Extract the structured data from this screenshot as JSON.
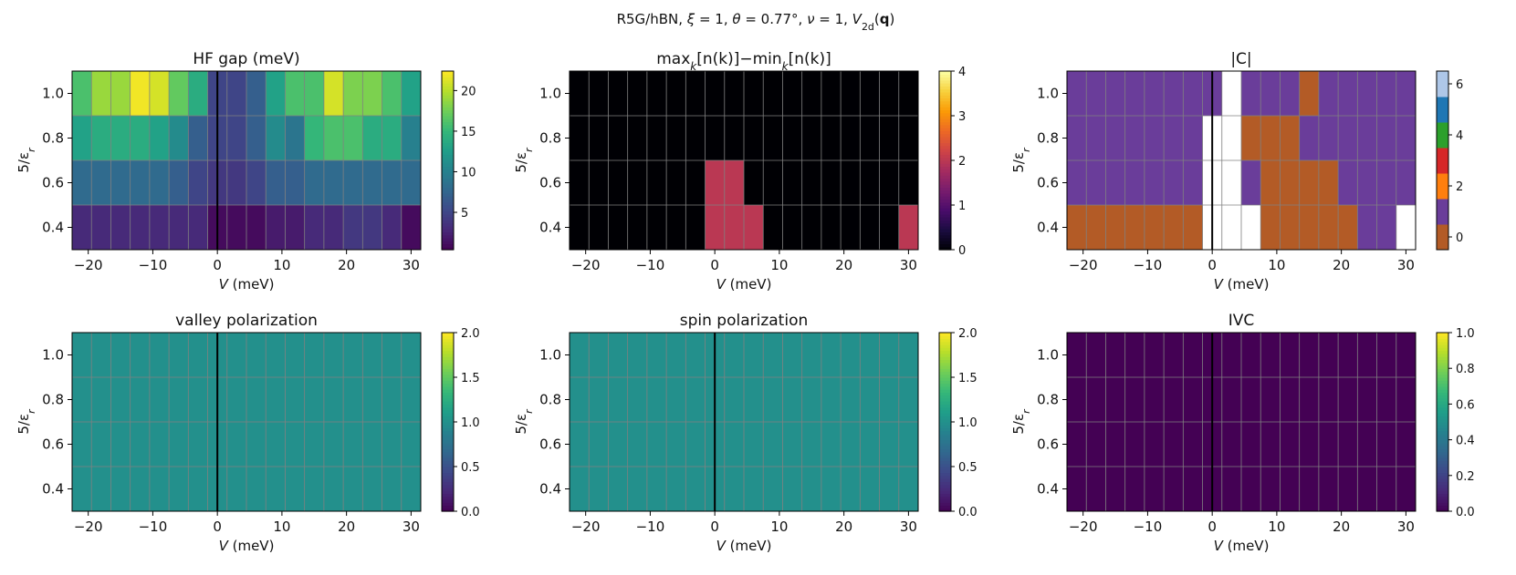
{
  "suptitle": "R5G/hBN,  ξ = 1,  θ = 0.77°,  ν = 1,  V₂d(q)",
  "suptitle_parts": {
    "prefix": "R5G/hBN,  ",
    "xi": "ξ",
    "eq1": " = 1,  ",
    "theta": "θ",
    "eq2": " = 0.77°,  ",
    "nu": "ν",
    "eq3": " = 1,  ",
    "V": "V",
    "sub": "2d",
    "open": "(",
    "q": "q",
    "close": ")"
  },
  "colors": {
    "viridis": [
      "#440154",
      "#482878",
      "#3e4989",
      "#31688e",
      "#26828e",
      "#1f9e89",
      "#35b779",
      "#6ece58",
      "#b5de2b",
      "#fde725"
    ],
    "inferno": [
      "#000004",
      "#1b0c41",
      "#4a0c6b",
      "#781c6d",
      "#a52c60",
      "#cf4446",
      "#ed6925",
      "#fb9b06",
      "#f7d13d",
      "#fcffa4"
    ],
    "grid": "#808080",
    "zero_line": "#000000",
    "chern_levels": [
      "#b35b26",
      "#6a3d9a",
      "#ff7f0e",
      "#d62728",
      "#2ca02c",
      "#1f77b4",
      "#aec7e8"
    ]
  },
  "chart_data": [
    {
      "type": "heatmap",
      "title": "HF gap (meV)",
      "xlabel": "V (meV)",
      "ylabel": "5/εr",
      "x": [
        -21,
        -18,
        -15,
        -12,
        -9,
        -6,
        -3,
        0,
        3,
        6,
        9,
        12,
        15,
        18,
        21,
        24,
        27,
        30
      ],
      "y": [
        0.4,
        0.6,
        0.8,
        1.0
      ],
      "z": [
        [
          3,
          3,
          3,
          3,
          3,
          3,
          3,
          1,
          1,
          1,
          2,
          2,
          3,
          3,
          4,
          4,
          3,
          1
        ],
        [
          8,
          8,
          8,
          8,
          8,
          7,
          5,
          4,
          4,
          5,
          7,
          7,
          8,
          8,
          8,
          8,
          8,
          8
        ],
        [
          13,
          14,
          14,
          14,
          13,
          11,
          7,
          5,
          5,
          7,
          11,
          9,
          15,
          16,
          16,
          14,
          14,
          10
        ],
        [
          16,
          19,
          19,
          22,
          21,
          17,
          14,
          5,
          5,
          7,
          13,
          16,
          16,
          21,
          18,
          18,
          16,
          13
        ]
      ],
      "colormap": "viridis",
      "xlim": [
        -22.5,
        31.5
      ],
      "ylim": [
        0.3,
        1.1
      ],
      "clim": [
        0.4,
        22.4
      ],
      "xticks": [
        -20,
        -10,
        0,
        10,
        20,
        30
      ],
      "yticks": [
        0.4,
        0.6,
        0.8,
        1.0
      ],
      "xtick_labels": [
        "−20",
        "−10",
        "0",
        "10",
        "20",
        "30"
      ],
      "ytick_labels": [
        "0.4",
        "0.6",
        "0.8",
        "1.0"
      ],
      "cticks": [
        5,
        10,
        15,
        20
      ],
      "ctick_labels": [
        "5",
        "10",
        "15",
        "20"
      ],
      "grid": true
    },
    {
      "type": "heatmap",
      "title": "maxk[n(k)]−mink[n(k)]",
      "title_parts": {
        "max": "max",
        "k1": "k",
        "n1": "[n(k)]−min",
        "k2": "k",
        "n2": "[n(k)]"
      },
      "xlabel": "V (meV)",
      "ylabel": "5/εr",
      "x": [
        -21,
        -18,
        -15,
        -12,
        -9,
        -6,
        -3,
        0,
        3,
        6,
        9,
        12,
        15,
        18,
        21,
        24,
        27,
        30
      ],
      "y": [
        0.4,
        0.6,
        0.8,
        1.0
      ],
      "z": [
        [
          0,
          0,
          0,
          0,
          0,
          0,
          0,
          2,
          2,
          2,
          0,
          0,
          0,
          0,
          0,
          0,
          0,
          2
        ],
        [
          0,
          0,
          0,
          0,
          0,
          0,
          0,
          2,
          2,
          0,
          0,
          0,
          0,
          0,
          0,
          0,
          0,
          0
        ],
        [
          0,
          0,
          0,
          0,
          0,
          0,
          0,
          0,
          0,
          0,
          0,
          0,
          0,
          0,
          0,
          0,
          0,
          0
        ],
        [
          0,
          0,
          0,
          0,
          0,
          0,
          0,
          0,
          0,
          0,
          0,
          0,
          0,
          0,
          0,
          0,
          0,
          0
        ]
      ],
      "colormap": "inferno",
      "xlim": [
        -22.5,
        31.5
      ],
      "ylim": [
        0.3,
        1.1
      ],
      "clim": [
        0,
        4
      ],
      "xticks": [
        -20,
        -10,
        0,
        10,
        20,
        30
      ],
      "yticks": [
        0.4,
        0.6,
        0.8,
        1.0
      ],
      "xtick_labels": [
        "−20",
        "−10",
        "0",
        "10",
        "20",
        "30"
      ],
      "ytick_labels": [
        "0.4",
        "0.6",
        "0.8",
        "1.0"
      ],
      "cticks": [
        0,
        1,
        2,
        3,
        4
      ],
      "ctick_labels": [
        "0",
        "1",
        "2",
        "3",
        "4"
      ],
      "grid": true,
      "zero_line": false
    },
    {
      "type": "heatmap",
      "title": "|C|",
      "xlabel": "V (meV)",
      "ylabel": "5/εr",
      "x": [
        -21,
        -18,
        -15,
        -12,
        -9,
        -6,
        -3,
        0,
        3,
        6,
        9,
        12,
        15,
        18,
        21,
        24,
        27,
        30
      ],
      "y": [
        0.4,
        0.6,
        0.8,
        1.0
      ],
      "z": [
        [
          0,
          0,
          0,
          0,
          0,
          0,
          0,
          null,
          null,
          null,
          0,
          0,
          0,
          0,
          0,
          1,
          1,
          null
        ],
        [
          1,
          1,
          1,
          1,
          1,
          1,
          1,
          null,
          null,
          1,
          0,
          0,
          0,
          0,
          1,
          1,
          1,
          1
        ],
        [
          1,
          1,
          1,
          1,
          1,
          1,
          1,
          null,
          null,
          0,
          0,
          0,
          1,
          1,
          1,
          1,
          1,
          1
        ],
        [
          1,
          1,
          1,
          1,
          1,
          1,
          1,
          1,
          null,
          1,
          1,
          1,
          0,
          1,
          1,
          1,
          1,
          1
        ]
      ],
      "missing_color": "#ffffff",
      "colormap": "chern_levels",
      "xlim": [
        -22.5,
        31.5
      ],
      "ylim": [
        0.3,
        1.1
      ],
      "clim": [
        -0.5,
        6.5
      ],
      "xticks": [
        -20,
        -10,
        0,
        10,
        20,
        30
      ],
      "yticks": [
        0.4,
        0.6,
        0.8,
        1.0
      ],
      "xtick_labels": [
        "−20",
        "−10",
        "0",
        "10",
        "20",
        "30"
      ],
      "ytick_labels": [
        "0.4",
        "0.6",
        "0.8",
        "1.0"
      ],
      "cticks": [
        0,
        2,
        4,
        6
      ],
      "ctick_labels": [
        "0",
        "2",
        "4",
        "6"
      ],
      "grid": true
    },
    {
      "type": "heatmap",
      "title": "valley polarization",
      "xlabel": "V (meV)",
      "ylabel": "5/εr",
      "x": [
        -21,
        -18,
        -15,
        -12,
        -9,
        -6,
        -3,
        0,
        3,
        6,
        9,
        12,
        15,
        18,
        21,
        24,
        27,
        30
      ],
      "y": [
        0.4,
        0.6,
        0.8,
        1.0
      ],
      "z": [
        [
          1,
          1,
          1,
          1,
          1,
          1,
          1,
          1,
          1,
          1,
          1,
          1,
          1,
          1,
          1,
          1,
          1,
          1
        ],
        [
          1,
          1,
          1,
          1,
          1,
          1,
          1,
          1,
          1,
          1,
          1,
          1,
          1,
          1,
          1,
          1,
          1,
          1
        ],
        [
          1,
          1,
          1,
          1,
          1,
          1,
          1,
          1,
          1,
          1,
          1,
          1,
          1,
          1,
          1,
          1,
          1,
          1
        ],
        [
          1,
          1,
          1,
          1,
          1,
          1,
          1,
          1,
          1,
          1,
          1,
          1,
          1,
          1,
          1,
          1,
          1,
          1
        ]
      ],
      "colormap": "viridis",
      "xlim": [
        -22.5,
        31.5
      ],
      "ylim": [
        0.3,
        1.1
      ],
      "clim": [
        0,
        2
      ],
      "xticks": [
        -20,
        -10,
        0,
        10,
        20,
        30
      ],
      "yticks": [
        0.4,
        0.6,
        0.8,
        1.0
      ],
      "xtick_labels": [
        "−20",
        "−10",
        "0",
        "10",
        "20",
        "30"
      ],
      "ytick_labels": [
        "0.4",
        "0.6",
        "0.8",
        "1.0"
      ],
      "cticks": [
        0,
        0.5,
        1,
        1.5,
        2
      ],
      "ctick_labels": [
        "0.0",
        "0.5",
        "1.0",
        "1.5",
        "2.0"
      ],
      "grid": true
    },
    {
      "type": "heatmap",
      "title": "spin polarization",
      "xlabel": "V (meV)",
      "ylabel": "5/εr",
      "x": [
        -21,
        -18,
        -15,
        -12,
        -9,
        -6,
        -3,
        0,
        3,
        6,
        9,
        12,
        15,
        18,
        21,
        24,
        27,
        30
      ],
      "y": [
        0.4,
        0.6,
        0.8,
        1.0
      ],
      "z": [
        [
          1,
          1,
          1,
          1,
          1,
          1,
          1,
          1,
          1,
          1,
          1,
          1,
          1,
          1,
          1,
          1,
          1,
          1
        ],
        [
          1,
          1,
          1,
          1,
          1,
          1,
          1,
          1,
          1,
          1,
          1,
          1,
          1,
          1,
          1,
          1,
          1,
          1
        ],
        [
          1,
          1,
          1,
          1,
          1,
          1,
          1,
          1,
          1,
          1,
          1,
          1,
          1,
          1,
          1,
          1,
          1,
          1
        ],
        [
          1,
          1,
          1,
          1,
          1,
          1,
          1,
          1,
          1,
          1,
          1,
          1,
          1,
          1,
          1,
          1,
          1,
          1
        ]
      ],
      "colormap": "viridis",
      "xlim": [
        -22.5,
        31.5
      ],
      "ylim": [
        0.3,
        1.1
      ],
      "clim": [
        0,
        2
      ],
      "xticks": [
        -20,
        -10,
        0,
        10,
        20,
        30
      ],
      "yticks": [
        0.4,
        0.6,
        0.8,
        1.0
      ],
      "xtick_labels": [
        "−20",
        "−10",
        "0",
        "10",
        "20",
        "30"
      ],
      "ytick_labels": [
        "0.4",
        "0.6",
        "0.8",
        "1.0"
      ],
      "cticks": [
        0,
        0.5,
        1,
        1.5,
        2
      ],
      "ctick_labels": [
        "0.0",
        "0.5",
        "1.0",
        "1.5",
        "2.0"
      ],
      "grid": true
    },
    {
      "type": "heatmap",
      "title": "IVC",
      "xlabel": "V (meV)",
      "ylabel": "5/εr",
      "x": [
        -21,
        -18,
        -15,
        -12,
        -9,
        -6,
        -3,
        0,
        3,
        6,
        9,
        12,
        15,
        18,
        21,
        24,
        27,
        30
      ],
      "y": [
        0.4,
        0.6,
        0.8,
        1.0
      ],
      "z": [
        [
          0,
          0,
          0,
          0,
          0,
          0,
          0,
          0,
          0,
          0,
          0,
          0,
          0,
          0,
          0,
          0,
          0,
          0
        ],
        [
          0,
          0,
          0,
          0,
          0,
          0,
          0,
          0,
          0,
          0,
          0,
          0,
          0,
          0,
          0,
          0,
          0,
          0
        ],
        [
          0,
          0,
          0,
          0,
          0,
          0,
          0,
          0,
          0,
          0,
          0,
          0,
          0,
          0,
          0,
          0,
          0,
          0
        ],
        [
          0,
          0,
          0,
          0,
          0,
          0,
          0,
          0,
          0,
          0,
          0,
          0,
          0,
          0,
          0,
          0,
          0,
          0
        ]
      ],
      "colormap": "viridis",
      "xlim": [
        -22.5,
        31.5
      ],
      "ylim": [
        0.3,
        1.1
      ],
      "clim": [
        0,
        1
      ],
      "xticks": [
        -20,
        -10,
        0,
        10,
        20,
        30
      ],
      "yticks": [
        0.4,
        0.6,
        0.8,
        1.0
      ],
      "xtick_labels": [
        "−20",
        "−10",
        "0",
        "10",
        "20",
        "30"
      ],
      "ytick_labels": [
        "0.4",
        "0.6",
        "0.8",
        "1.0"
      ],
      "cticks": [
        0,
        0.2,
        0.4,
        0.6,
        0.8,
        1.0
      ],
      "ctick_labels": [
        "0.0",
        "0.2",
        "0.4",
        "0.6",
        "0.8",
        "1.0"
      ],
      "grid": true
    }
  ]
}
